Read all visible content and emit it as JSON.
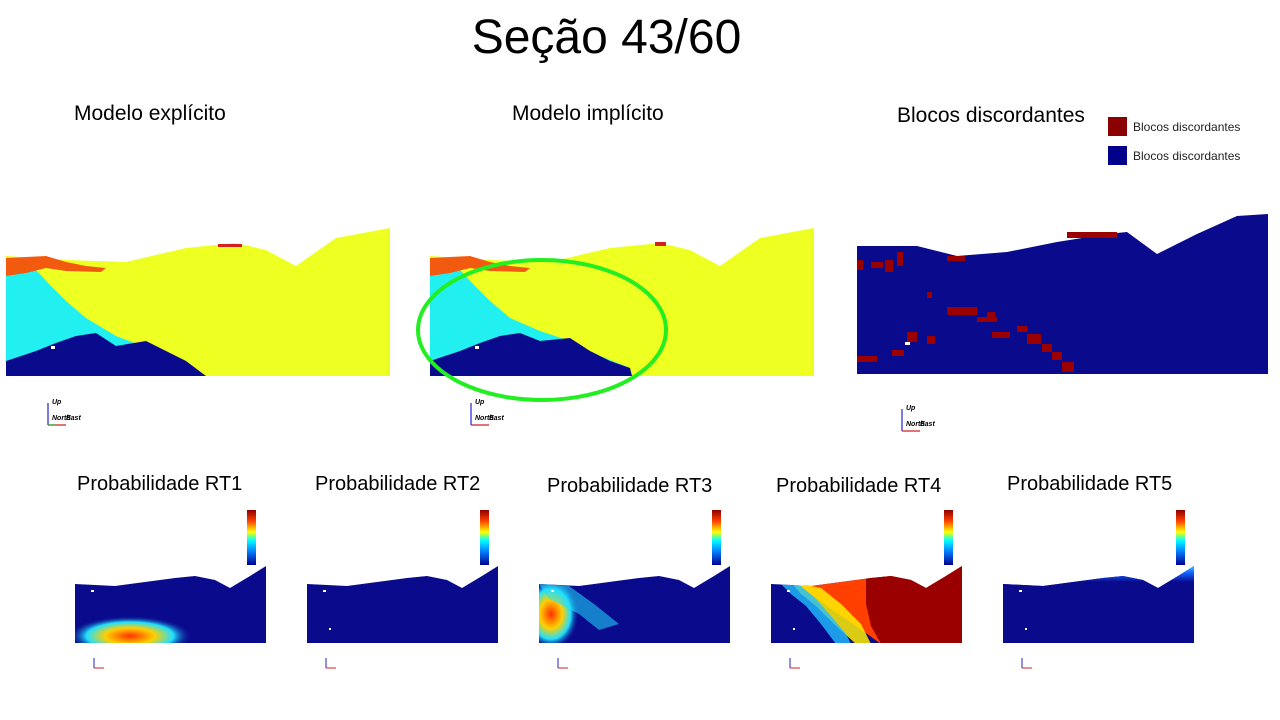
{
  "slide": {
    "title": "Seção 43/60"
  },
  "top_panels": [
    {
      "label": "Modelo explícito"
    },
    {
      "label": "Modelo implícito"
    },
    {
      "label": "Blocos discordantes"
    }
  ],
  "legend": {
    "items": [
      {
        "label": "Blocos discordantes",
        "color": "#8b0000"
      },
      {
        "label": "Blocos discordantes",
        "color": "#00008b"
      }
    ]
  },
  "axes": {
    "up": "Up",
    "north": "North",
    "east": "East"
  },
  "bottom_panels": [
    {
      "label": "Probabilidade RT1"
    },
    {
      "label": "Probabilidade RT2"
    },
    {
      "label": "Probabilidade RT3"
    },
    {
      "label": "Probabilidade RT4"
    },
    {
      "label": "Probabilidade RT5"
    }
  ],
  "colors": {
    "yellow": "#eeff22",
    "cyan": "#22f0f0",
    "navy": "#0a0a8c",
    "orange": "#f25a10",
    "red": "#d42020",
    "dark_red": "#9a0000",
    "highlight_green": "#22ee22"
  }
}
